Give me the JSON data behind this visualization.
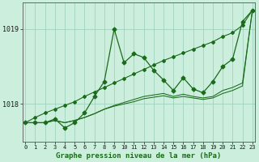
{
  "x": [
    0,
    1,
    2,
    3,
    4,
    5,
    6,
    7,
    8,
    9,
    10,
    11,
    12,
    13,
    14,
    15,
    16,
    17,
    18,
    19,
    20,
    21,
    22,
    23
  ],
  "series_jagged": [
    1017.75,
    1017.75,
    1017.75,
    1017.8,
    1017.68,
    1017.75,
    1017.88,
    1018.1,
    1018.3,
    1019.0,
    1018.55,
    1018.67,
    1018.62,
    1018.45,
    1018.32,
    1018.18,
    1018.35,
    1018.2,
    1018.15,
    1018.3,
    1018.5,
    1018.6,
    1019.1,
    1019.25
  ],
  "series_diagonal": [
    1017.75,
    1017.82,
    1017.88,
    1017.93,
    1017.98,
    1018.03,
    1018.1,
    1018.16,
    1018.22,
    1018.28,
    1018.34,
    1018.4,
    1018.46,
    1018.52,
    1018.58,
    1018.63,
    1018.68,
    1018.73,
    1018.78,
    1018.83,
    1018.9,
    1018.95,
    1019.05,
    1019.25
  ],
  "series_flat1": [
    1017.75,
    1017.75,
    1017.75,
    1017.78,
    1017.75,
    1017.78,
    1017.82,
    1017.87,
    1017.93,
    1017.98,
    1018.02,
    1018.06,
    1018.1,
    1018.12,
    1018.14,
    1018.1,
    1018.13,
    1018.1,
    1018.08,
    1018.1,
    1018.18,
    1018.22,
    1018.28,
    1019.25
  ],
  "series_flat2": [
    1017.75,
    1017.75,
    1017.75,
    1017.78,
    1017.75,
    1017.78,
    1017.82,
    1017.87,
    1017.93,
    1017.97,
    1018.0,
    1018.03,
    1018.07,
    1018.09,
    1018.11,
    1018.08,
    1018.1,
    1018.08,
    1018.06,
    1018.08,
    1018.14,
    1018.18,
    1018.24,
    1019.25
  ],
  "line_color": "#1a6b1a",
  "bg_color": "#cceedd",
  "grid_color": "#99ccbb",
  "yticks": [
    1018,
    1019
  ],
  "ylim": [
    1017.5,
    1019.35
  ],
  "xlim": [
    -0.3,
    23.3
  ],
  "xlabel": "Graphe pression niveau de la mer (hPa)",
  "xtick_labels": [
    "0",
    "1",
    "2",
    "3",
    "4",
    "5",
    "6",
    "7",
    "8",
    "9",
    "10",
    "11",
    "12",
    "13",
    "14",
    "15",
    "16",
    "17",
    "18",
    "19",
    "20",
    "21",
    "22",
    "23"
  ]
}
